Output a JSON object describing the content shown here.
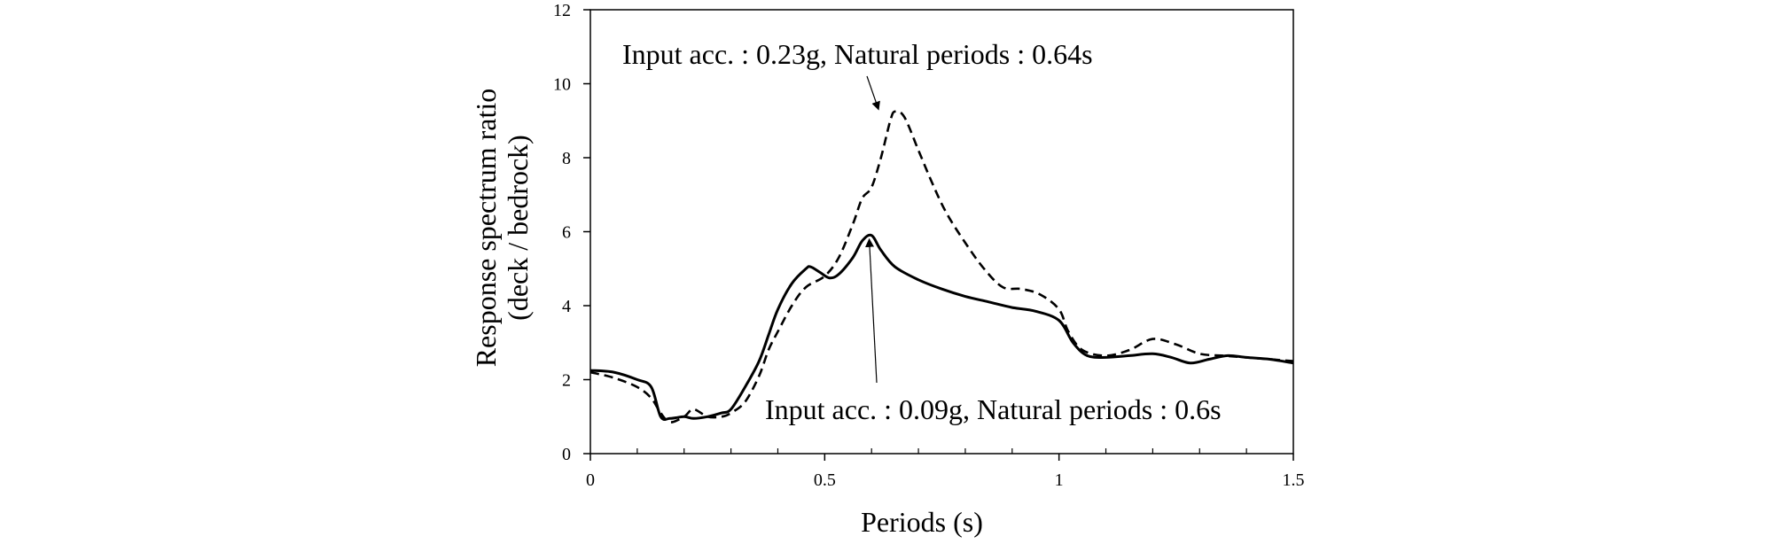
{
  "chart_data": {
    "type": "line",
    "title": "",
    "xlabel": "Periods (s)",
    "ylabel_lines": [
      "Response spectrum ratio",
      "(deck / bedrock)"
    ],
    "xlim": [
      0,
      1.5
    ],
    "ylim": [
      0,
      12
    ],
    "xticks": [
      0,
      0.5,
      1,
      1.5
    ],
    "xtick_labels": [
      "0",
      "0.5",
      "1",
      "1.5"
    ],
    "yticks": [
      0,
      2,
      4,
      6,
      8,
      10,
      12
    ],
    "ytick_labels": [
      "0",
      "2",
      "4",
      "6",
      "8",
      "10",
      "12"
    ],
    "grid": false,
    "legend": "none",
    "series": [
      {
        "style": "dashed",
        "color": "#000000",
        "x": [
          0,
          0.05,
          0.1,
          0.13,
          0.15,
          0.17,
          0.2,
          0.22,
          0.25,
          0.28,
          0.3,
          0.33,
          0.36,
          0.38,
          0.4,
          0.43,
          0.46,
          0.5,
          0.53,
          0.56,
          0.58,
          0.6,
          0.62,
          0.64,
          0.65,
          0.67,
          0.7,
          0.73,
          0.76,
          0.8,
          0.84,
          0.88,
          0.92,
          0.96,
          1.0,
          1.02,
          1.05,
          1.1,
          1.15,
          1.2,
          1.25,
          1.3,
          1.35,
          1.4,
          1.45,
          1.5
        ],
        "y": [
          2.2,
          2.05,
          1.8,
          1.5,
          1.1,
          0.85,
          1.0,
          1.2,
          1.0,
          1.0,
          1.1,
          1.4,
          2.1,
          2.8,
          3.3,
          4.0,
          4.5,
          4.8,
          5.3,
          6.2,
          6.9,
          7.2,
          8.0,
          9.0,
          9.25,
          9.1,
          8.2,
          7.3,
          6.5,
          5.7,
          5.0,
          4.5,
          4.45,
          4.3,
          3.9,
          3.3,
          2.8,
          2.65,
          2.8,
          3.1,
          2.95,
          2.7,
          2.65,
          2.6,
          2.55,
          2.5
        ]
      },
      {
        "style": "solid",
        "color": "#000000",
        "x": [
          0,
          0.05,
          0.1,
          0.13,
          0.15,
          0.17,
          0.2,
          0.22,
          0.25,
          0.28,
          0.3,
          0.33,
          0.36,
          0.38,
          0.4,
          0.43,
          0.46,
          0.47,
          0.49,
          0.51,
          0.53,
          0.56,
          0.58,
          0.6,
          0.62,
          0.65,
          0.7,
          0.75,
          0.8,
          0.85,
          0.9,
          0.95,
          1.0,
          1.03,
          1.06,
          1.1,
          1.15,
          1.2,
          1.24,
          1.28,
          1.32,
          1.36,
          1.4,
          1.45,
          1.5
        ],
        "y": [
          2.25,
          2.2,
          2.0,
          1.8,
          1.0,
          0.95,
          1.0,
          0.95,
          1.0,
          1.1,
          1.2,
          1.8,
          2.5,
          3.2,
          3.9,
          4.6,
          5.0,
          5.05,
          4.9,
          4.75,
          4.85,
          5.3,
          5.75,
          5.9,
          5.5,
          5.05,
          4.7,
          4.45,
          4.25,
          4.1,
          3.95,
          3.85,
          3.6,
          3.0,
          2.65,
          2.6,
          2.65,
          2.7,
          2.6,
          2.45,
          2.55,
          2.65,
          2.6,
          2.55,
          2.45
        ]
      }
    ],
    "annotations": [
      {
        "text": "Input acc. : 0.23g, Natural periods : 0.64s",
        "arrow_to": [
          0.615,
          9.3
        ]
      },
      {
        "text": "Input acc. : 0.09g, Natural periods : 0.6s",
        "arrow_to": [
          0.595,
          5.8
        ]
      }
    ]
  }
}
